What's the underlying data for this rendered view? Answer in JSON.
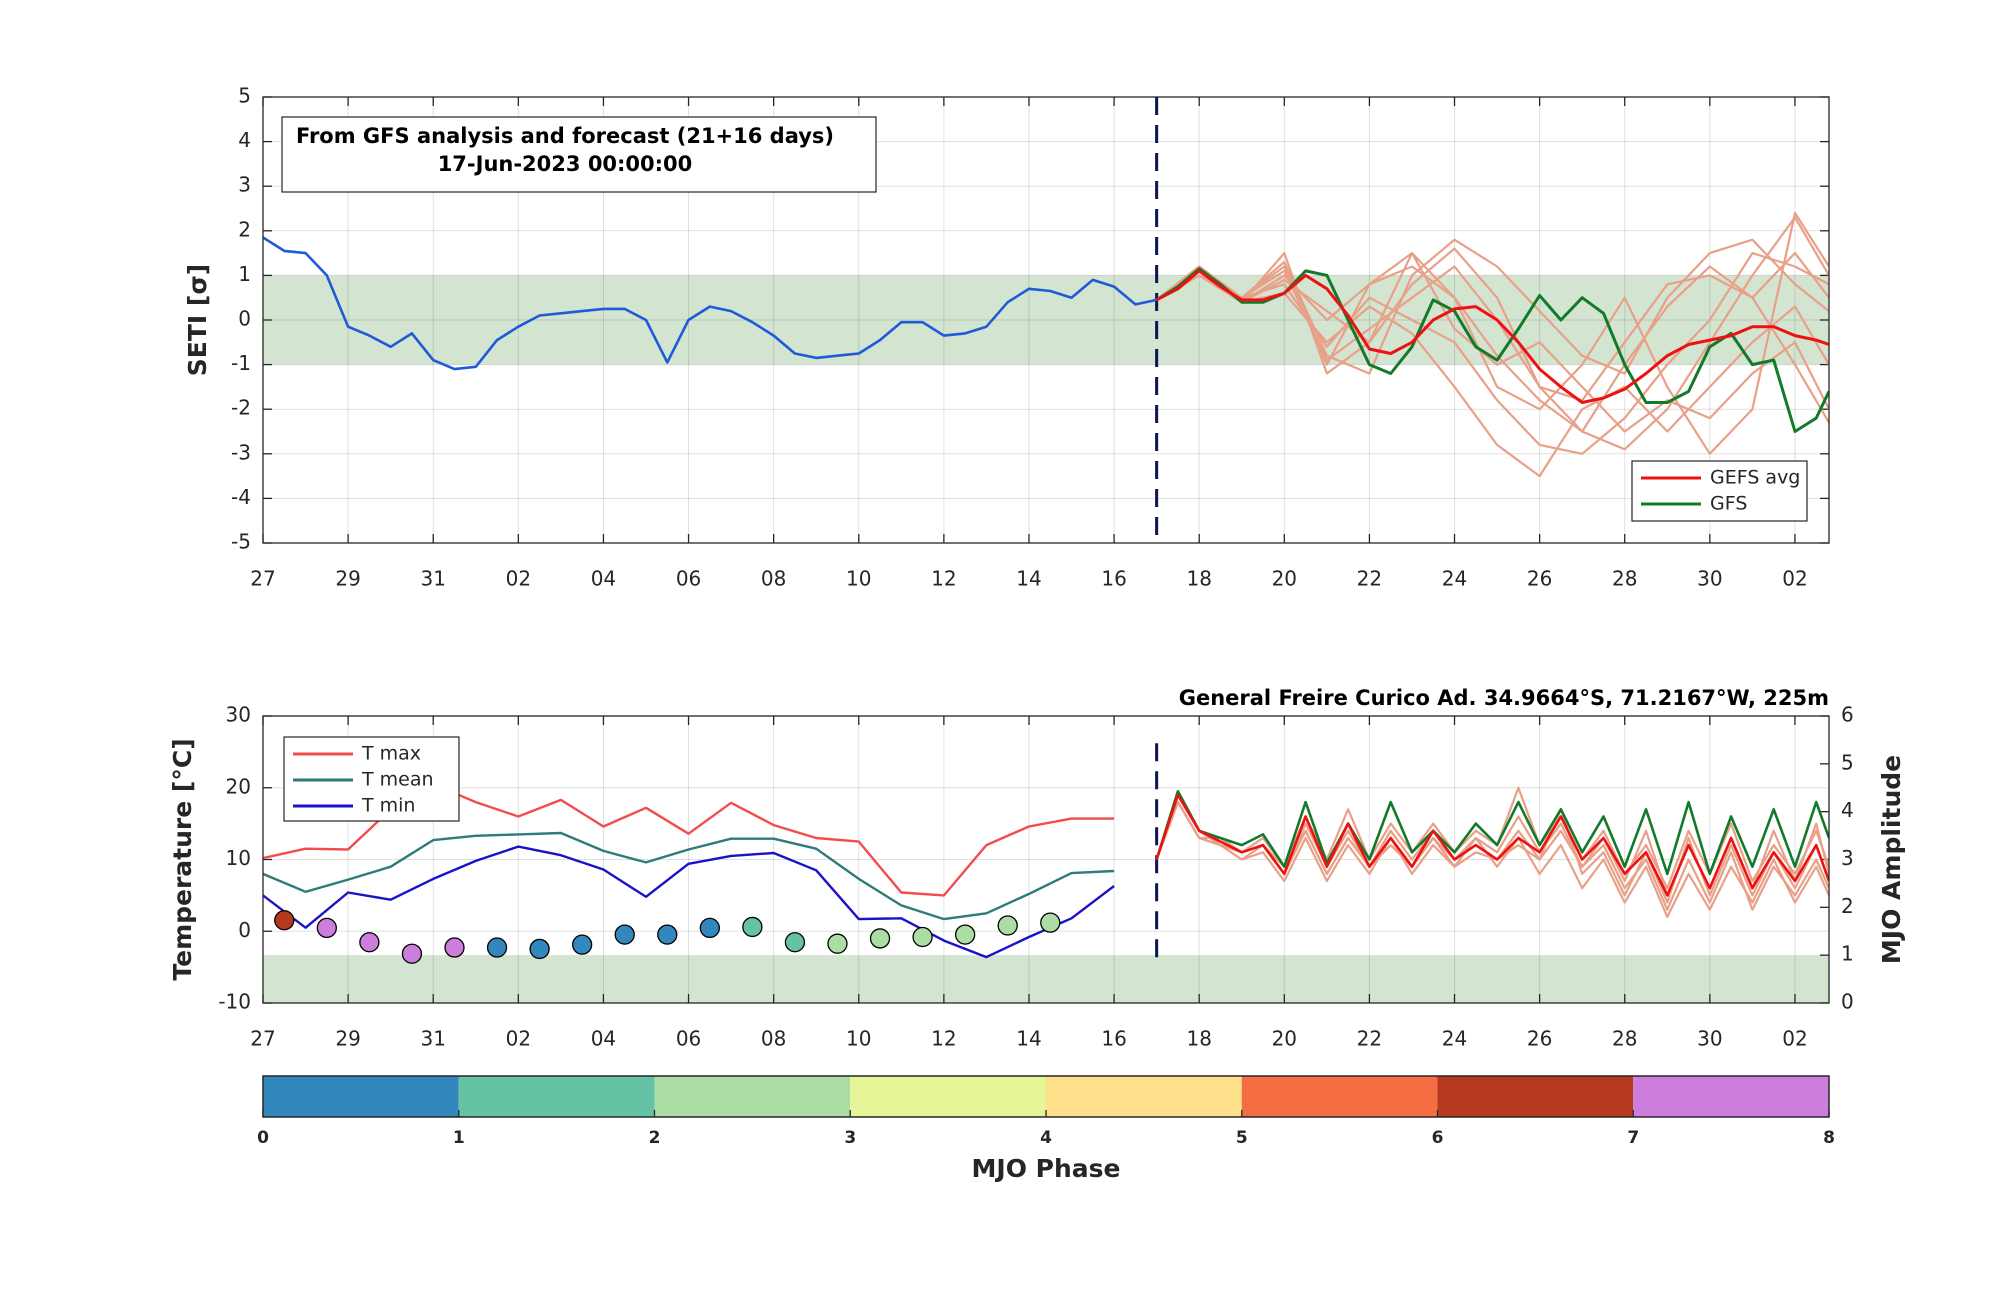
{
  "chart_data": [
    {
      "type": "line",
      "ylabel": "SETI [σ]",
      "annotation": [
        "From GFS analysis and forecast (21+16 days)",
        "17-Jun-2023 00:00:00"
      ],
      "xlim": [
        0,
        36.8
      ],
      "xticks": [
        {
          "value": 0,
          "label": "27"
        },
        {
          "value": 2,
          "label": "29"
        },
        {
          "value": 4,
          "label": "31"
        },
        {
          "value": 6,
          "label": "02"
        },
        {
          "value": 8,
          "label": "04"
        },
        {
          "value": 10,
          "label": "06"
        },
        {
          "value": 12,
          "label": "08"
        },
        {
          "value": 14,
          "label": "10"
        },
        {
          "value": 16,
          "label": "12"
        },
        {
          "value": 18,
          "label": "14"
        },
        {
          "value": 20,
          "label": "16"
        },
        {
          "value": 22,
          "label": "18"
        },
        {
          "value": 24,
          "label": "20"
        },
        {
          "value": 26,
          "label": "22"
        },
        {
          "value": 28,
          "label": "24"
        },
        {
          "value": 30,
          "label": "26"
        },
        {
          "value": 32,
          "label": "28"
        },
        {
          "value": 34,
          "label": "30"
        },
        {
          "value": 36,
          "label": "02"
        }
      ],
      "ylim": [
        -5,
        5
      ],
      "yticks": [
        -5,
        -4,
        -3,
        -2,
        -1,
        0,
        1,
        2,
        3,
        4,
        5
      ],
      "grid": true,
      "band": [
        -1,
        1
      ],
      "band_color": "#d3e4d1",
      "forecast_start": 21,
      "legend": "lower right",
      "observed": {
        "color": "#1f5ad8",
        "x": [
          0,
          0.5,
          1,
          1.5,
          2,
          2.5,
          3,
          3.5,
          4,
          4.5,
          5,
          5.5,
          6,
          6.5,
          7,
          7.5,
          8,
          8.5,
          9,
          9.5,
          10,
          10.5,
          11,
          11.5,
          12,
          12.5,
          13,
          13.5,
          14,
          14.5,
          15,
          15.5,
          16,
          16.5,
          17,
          17.5,
          18,
          18.5,
          19,
          19.5,
          20,
          20.5,
          21
        ],
        "values": [
          1.85,
          1.55,
          1.5,
          1.0,
          -0.15,
          -0.35,
          -0.6,
          -0.3,
          -0.9,
          -1.1,
          -1.05,
          -0.45,
          -0.15,
          0.1,
          0.15,
          0.2,
          0.25,
          0.25,
          0.0,
          -0.95,
          0.0,
          0.3,
          0.2,
          -0.05,
          -0.35,
          -0.75,
          -0.85,
          -0.8,
          -0.75,
          -0.45,
          -0.05,
          -0.05,
          -0.35,
          -0.3,
          -0.15,
          0.4,
          0.7,
          0.65,
          0.5,
          0.9,
          0.75,
          0.35,
          0.45
        ]
      },
      "forecast_x": [
        21,
        21.5,
        22,
        22.5,
        23,
        23.5,
        24,
        24.5,
        25,
        25.5,
        26,
        26.5,
        27,
        27.5,
        28,
        28.5,
        29,
        29.5,
        30,
        30.5,
        31,
        31.5,
        32,
        32.5,
        33,
        33.5,
        34,
        34.5,
        35,
        35.5,
        36,
        36.5,
        36.8
      ],
      "series": [
        {
          "name": "GEFS avg",
          "color": "#ee1111",
          "values": [
            0.45,
            0.7,
            1.1,
            0.75,
            0.45,
            0.45,
            0.6,
            1.0,
            0.7,
            0.1,
            -0.65,
            -0.75,
            -0.5,
            0.0,
            0.25,
            0.3,
            0.0,
            -0.5,
            -1.1,
            -1.5,
            -1.85,
            -1.75,
            -1.55,
            -1.2,
            -0.8,
            -0.55,
            -0.45,
            -0.35,
            -0.15,
            -0.15,
            -0.35,
            -0.45,
            -0.55
          ]
        },
        {
          "name": "GFS",
          "color": "#127a2a",
          "values": [
            0.45,
            0.75,
            1.15,
            0.8,
            0.4,
            0.4,
            0.6,
            1.1,
            1.0,
            0.0,
            -1.0,
            -1.2,
            -0.6,
            0.45,
            0.2,
            -0.6,
            -0.9,
            -0.2,
            0.55,
            0.0,
            0.5,
            0.15,
            -1.0,
            -1.85,
            -1.85,
            -1.6,
            -0.6,
            -0.3,
            -1.0,
            -0.9,
            -2.5,
            -2.2,
            -1.6
          ]
        }
      ],
      "members": {
        "color": "#e8a088",
        "x": [
          21,
          22,
          23,
          24,
          25,
          26,
          27,
          28,
          29,
          30,
          31,
          32,
          33,
          34,
          35,
          36,
          36.8
        ],
        "lines": [
          [
            0.45,
            1.1,
            0.4,
            0.9,
            0.2,
            -0.5,
            0.8,
            1.6,
            0.5,
            -1.5,
            -2.5,
            -2.9,
            -2.0,
            -0.5,
            1.0,
            2.3,
            1.0
          ],
          [
            0.45,
            1.2,
            0.5,
            1.3,
            -0.8,
            -1.2,
            1.0,
            1.8,
            1.2,
            0.2,
            -0.8,
            -1.2,
            0.5,
            1.5,
            1.8,
            0.8,
            0.2
          ],
          [
            0.45,
            1.0,
            0.4,
            0.6,
            -0.5,
            0.3,
            -0.3,
            -1.5,
            -2.8,
            -3.5,
            -2.0,
            -1.5,
            -2.5,
            -1.5,
            -0.5,
            0.3,
            -1.0
          ],
          [
            0.45,
            1.1,
            0.5,
            1.2,
            -1.0,
            0.8,
            1.2,
            0.5,
            -0.8,
            -1.8,
            -2.5,
            -1.0,
            0.3,
            1.2,
            0.5,
            -1.0,
            -2.3
          ],
          [
            0.45,
            1.2,
            0.4,
            1.5,
            -1.2,
            -0.5,
            1.5,
            0.5,
            -1.5,
            -2.0,
            -1.0,
            0.5,
            -1.5,
            -3.0,
            -2.0,
            2.4,
            1.2
          ],
          [
            0.45,
            1.0,
            0.5,
            0.8,
            -0.6,
            0.5,
            0.0,
            -0.5,
            -1.8,
            -2.8,
            -3.0,
            -2.2,
            -1.0,
            0.0,
            1.5,
            1.2,
            0.8
          ],
          [
            0.45,
            1.1,
            0.4,
            1.0,
            0.0,
            0.8,
            1.5,
            -0.2,
            -1.0,
            -0.5,
            -1.5,
            -2.5,
            -1.8,
            -2.2,
            -1.2,
            -0.5,
            -2.0
          ],
          [
            0.45,
            1.2,
            0.5,
            1.1,
            -0.9,
            -0.2,
            0.5,
            1.2,
            0.0,
            -1.5,
            -1.8,
            -0.5,
            0.8,
            1.0,
            0.5,
            1.5,
            0.5
          ]
        ]
      }
    },
    {
      "type": "line",
      "title": "General Freire Curico Ad. 34.9664°S, 71.2167°W, 225m",
      "ylabel": "Temperature [°C]",
      "y2label": "MJO Amplitude",
      "xlim": [
        0,
        36.8
      ],
      "xticks": [
        {
          "value": 0,
          "label": "27"
        },
        {
          "value": 2,
          "label": "29"
        },
        {
          "value": 4,
          "label": "31"
        },
        {
          "value": 6,
          "label": "02"
        },
        {
          "value": 8,
          "label": "04"
        },
        {
          "value": 10,
          "label": "06"
        },
        {
          "value": 12,
          "label": "08"
        },
        {
          "value": 14,
          "label": "10"
        },
        {
          "value": 16,
          "label": "12"
        },
        {
          "value": 18,
          "label": "14"
        },
        {
          "value": 20,
          "label": "16"
        },
        {
          "value": 22,
          "label": "18"
        },
        {
          "value": 24,
          "label": "20"
        },
        {
          "value": 26,
          "label": "22"
        },
        {
          "value": 28,
          "label": "24"
        },
        {
          "value": 30,
          "label": "26"
        },
        {
          "value": 32,
          "label": "28"
        },
        {
          "value": 34,
          "label": "30"
        },
        {
          "value": 36,
          "label": "02"
        }
      ],
      "ylim": [
        -10,
        30
      ],
      "yticks": [
        -10,
        0,
        10,
        20,
        30
      ],
      "y2lim": [
        0,
        6
      ],
      "y2ticks": [
        0,
        1,
        2,
        3,
        4,
        5,
        6
      ],
      "grid": true,
      "band": [
        0,
        1
      ],
      "band_axis": "y2",
      "band_color": "#d3e4d1",
      "forecast_start": 21,
      "legend": "upper left",
      "obs_x": [
        0,
        1,
        2,
        3,
        4,
        5,
        6,
        7,
        8,
        9,
        10,
        11,
        12,
        13,
        14,
        15,
        16,
        17,
        18,
        19,
        20
      ],
      "series": [
        {
          "name": "T max",
          "color": "#f24c4c",
          "values": [
            10.2,
            11.5,
            11.4,
            17,
            20.5,
            18,
            16,
            18.3,
            14.6,
            17.2,
            13.6,
            17.9,
            14.8,
            13,
            12.5,
            5.4,
            5,
            12,
            14.6,
            15.7,
            15.7
          ]
        },
        {
          "name": "T mean",
          "color": "#2e7b78",
          "values": [
            8,
            5.5,
            7.2,
            9,
            12.7,
            13.3,
            13.5,
            13.7,
            11.2,
            9.6,
            11.4,
            12.9,
            12.9,
            11.5,
            7.3,
            3.6,
            1.7,
            2.5,
            5.2,
            8.1,
            8.4
          ]
        },
        {
          "name": "T min",
          "color": "#1a12c8",
          "values": [
            5,
            0.5,
            5.4,
            4.4,
            7.3,
            9.8,
            11.8,
            10.6,
            8.6,
            4.8,
            9.4,
            10.5,
            10.9,
            8.5,
            1.7,
            1.8,
            -1.3,
            -3.6,
            -0.8,
            1.8,
            6.3
          ]
        }
      ],
      "forecast_x": [
        21,
        21.5,
        22,
        22.5,
        23,
        23.5,
        24,
        24.5,
        25,
        25.5,
        26,
        26.5,
        27,
        27.5,
        28,
        28.5,
        29,
        29.5,
        30,
        30.5,
        31,
        31.5,
        32,
        32.5,
        33,
        33.5,
        34,
        34.5,
        35,
        35.5,
        36,
        36.5,
        36.8
      ],
      "members": {
        "color": "#e8a088",
        "lines": [
          [
            10,
            18,
            13,
            12,
            10,
            12,
            8,
            14,
            8,
            13,
            9,
            12,
            9,
            13,
            9,
            11,
            10,
            12,
            10,
            14,
            9,
            12,
            6,
            10,
            3,
            10,
            4,
            11,
            3,
            9,
            5,
            10,
            6
          ],
          [
            10,
            19,
            14,
            13,
            11,
            13,
            9,
            16,
            10,
            17,
            10,
            15,
            11,
            15,
            11,
            14,
            12,
            20,
            12,
            16,
            10,
            14,
            8,
            12,
            6,
            14,
            8,
            15,
            7,
            12,
            8,
            14,
            9
          ],
          [
            10,
            18,
            13,
            12,
            10,
            11,
            7,
            13,
            7,
            12,
            8,
            13,
            8,
            12,
            9,
            13,
            9,
            13,
            8,
            12,
            6,
            10,
            4,
            9,
            2,
            8,
            3,
            9,
            4,
            10,
            4,
            9,
            5
          ],
          [
            10,
            19,
            14,
            12,
            11,
            12,
            8,
            15,
            9,
            14,
            9,
            14,
            10,
            14,
            10,
            13,
            11,
            16,
            11,
            15,
            9,
            13,
            7,
            14,
            5,
            12,
            6,
            13,
            6,
            14,
            7,
            15,
            8
          ],
          [
            10,
            18,
            13,
            13,
            11,
            12,
            9,
            14,
            8,
            13,
            9,
            13,
            9,
            13,
            10,
            12,
            10,
            14,
            10,
            17,
            8,
            11,
            5,
            11,
            4,
            13,
            5,
            12,
            5,
            11,
            6,
            12,
            7
          ]
        ]
      },
      "forecast": [
        {
          "color": "#127a2a",
          "values": [
            10,
            19.5,
            14,
            13,
            12,
            13.5,
            9,
            18,
            9.5,
            15,
            10,
            18,
            11,
            14,
            11,
            15,
            12,
            18,
            12,
            17,
            11,
            16,
            9,
            17,
            8,
            18,
            8,
            16,
            9,
            17,
            9,
            18,
            13
          ]
        },
        {
          "color": "#ee1111",
          "values": [
            10,
            19,
            14,
            12.5,
            11,
            12,
            8,
            16,
            9,
            15,
            9,
            13,
            9,
            14,
            10,
            12,
            10,
            13,
            11,
            16,
            10,
            13,
            8,
            11,
            5,
            12,
            6,
            13,
            6,
            11,
            7,
            12,
            7
          ]
        }
      ],
      "mjo": {
        "axis": "y2",
        "x": [
          0.5,
          1.5,
          2.5,
          3.5,
          4.5,
          5.5,
          6.5,
          7.5,
          8.5,
          9.5,
          10.5,
          11.5,
          12.5,
          13.5,
          14.5,
          15.5,
          16.5,
          17.5,
          18.5
        ],
        "values": [
          1.73,
          1.57,
          1.27,
          1.03,
          1.16,
          1.16,
          1.13,
          1.22,
          1.43,
          1.43,
          1.57,
          1.59,
          1.27,
          1.24,
          1.35,
          1.38,
          1.43,
          1.62,
          1.68
        ],
        "phase": [
          6.5,
          7.5,
          7.5,
          7.5,
          7.5,
          0.5,
          0.5,
          0.5,
          0.5,
          0.5,
          0.5,
          1.5,
          1.5,
          2.5,
          2.5,
          2.5,
          2.5,
          2.5,
          2.5
        ]
      }
    },
    {
      "type": "colorbar",
      "label": "MJO Phase",
      "xlim": [
        0,
        8
      ],
      "xticks": [
        0,
        1,
        2,
        3,
        4,
        5,
        6,
        7,
        8
      ],
      "colors": [
        "#3288bd",
        "#66c2a5",
        "#abdda4",
        "#e6f598",
        "#fee08b",
        "#f46d43",
        "#b5391f",
        "#cd7ddc"
      ]
    }
  ]
}
